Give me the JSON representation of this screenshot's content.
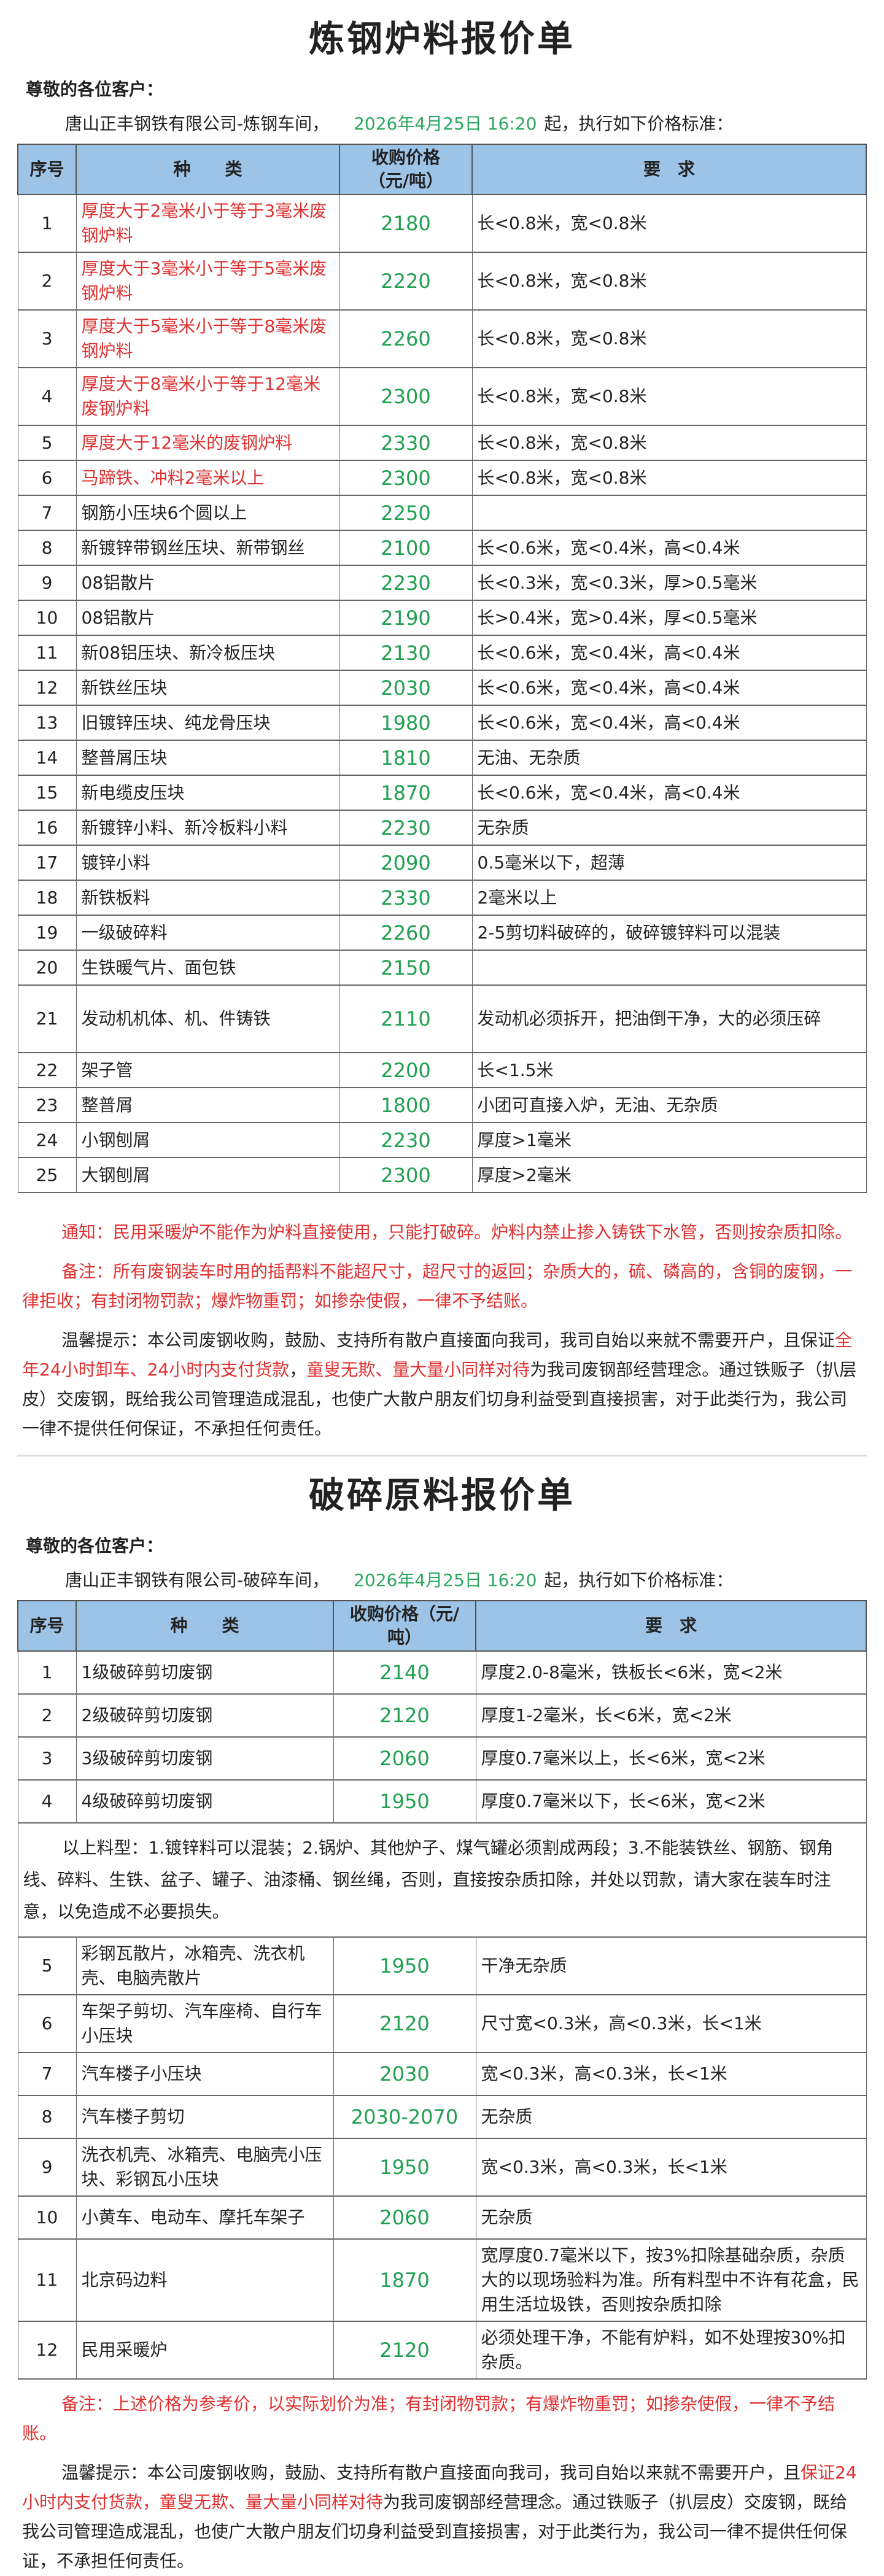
{
  "colors": {
    "header_bg": "#9dc3e6",
    "price": "#22a052",
    "highlight": "#e03030"
  },
  "sheet1": {
    "title": "炼钢炉料报价单",
    "greeting": "尊敬的各位客户：",
    "company": "唐山正丰钢铁有限公司-炼钢车间，",
    "date": "2026年4月25日 16:20",
    "after_date": "起，执行如下价格标准：",
    "headers": {
      "no": "序号",
      "type": "种　　类",
      "price": "收购价格（元/吨）",
      "req": "要　求"
    },
    "rows": [
      {
        "no": "1",
        "type": "厚度大于2毫米小于等于3毫米废钢炉料",
        "price": "2180",
        "req": "长<0.8米，宽<0.8米",
        "red": true
      },
      {
        "no": "2",
        "type": "厚度大于3毫米小于等于5毫米废钢炉料",
        "price": "2220",
        "req": "长<0.8米，宽<0.8米",
        "red": true
      },
      {
        "no": "3",
        "type": "厚度大于5毫米小于等于8毫米废钢炉料",
        "price": "2260",
        "req": "长<0.8米，宽<0.8米",
        "red": true
      },
      {
        "no": "4",
        "type": "厚度大于8毫米小于等于12毫米废钢炉料",
        "price": "2300",
        "req": "长<0.8米，宽<0.8米",
        "red": true
      },
      {
        "no": "5",
        "type": "厚度大于12毫米的废钢炉料",
        "price": "2330",
        "req": "长<0.8米，宽<0.8米",
        "red": true
      },
      {
        "no": "6",
        "type": "马蹄铁、冲料2毫米以上",
        "price": "2300",
        "req": "长<0.8米，宽<0.8米",
        "red": true
      },
      {
        "no": "7",
        "type": "钢筋小压块6个圆以上",
        "price": "2250",
        "req": ""
      },
      {
        "no": "8",
        "type": "新镀锌带钢丝压块、新带钢丝",
        "price": "2100",
        "req": "长<0.6米，宽<0.4米，高<0.4米"
      },
      {
        "no": "9",
        "type": "08铝散片",
        "price": "2230",
        "req": "长<0.3米，宽<0.3米，厚>0.5毫米"
      },
      {
        "no": "10",
        "type": "08铝散片",
        "price": "2190",
        "req": "长>0.4米，宽>0.4米，厚<0.5毫米"
      },
      {
        "no": "11",
        "type": "新08铝压块、新冷板压块",
        "price": "2130",
        "req": "长<0.6米，宽<0.4米，高<0.4米"
      },
      {
        "no": "12",
        "type": "新铁丝压块",
        "price": "2030",
        "req": "长<0.6米，宽<0.4米，高<0.4米"
      },
      {
        "no": "13",
        "type": "旧镀锌压块、纯龙骨压块",
        "price": "1980",
        "req": "长<0.6米，宽<0.4米，高<0.4米"
      },
      {
        "no": "14",
        "type": "整普屑压块",
        "price": "1810",
        "req": "无油、无杂质"
      },
      {
        "no": "15",
        "type": "新电缆皮压块",
        "price": "1870",
        "req": "长<0.6米，宽<0.4米，高<0.4米"
      },
      {
        "no": "16",
        "type": "新镀锌小料、新冷板料小料",
        "price": "2230",
        "req": "无杂质"
      },
      {
        "no": "17",
        "type": "镀锌小料",
        "price": "2090",
        "req": "0.5毫米以下，超薄"
      },
      {
        "no": "18",
        "type": "新铁板料",
        "price": "2330",
        "req": "2毫米以上"
      },
      {
        "no": "19",
        "type": "一级破碎料",
        "price": "2260",
        "req": "2-5剪切料破碎的，破碎镀锌料可以混装"
      },
      {
        "no": "20",
        "type": "生铁暖气片、面包铁",
        "price": "2150",
        "req": ""
      },
      {
        "no": "21",
        "type": "发动机机体、机、件铸铁",
        "price": "2110",
        "req": "发动机必须拆开，把油倒干净，大的必须压碎",
        "tall": true
      },
      {
        "no": "22",
        "type": "架子管",
        "price": "2200",
        "req": "长<1.5米"
      },
      {
        "no": "23",
        "type": "整普屑",
        "price": "1800",
        "req": "小团可直接入炉，无油、无杂质"
      },
      {
        "no": "24",
        "type": "小钢刨屑",
        "price": "2230",
        "req": "厚度>1毫米"
      },
      {
        "no": "25",
        "type": "大钢刨屑",
        "price": "2300",
        "req": "厚度>2毫米"
      }
    ],
    "notice": "通知：民用采暖炉不能作为炉料直接使用，只能打破碎。炉料内禁止掺入铸铁下水管，否则按杂质扣除。",
    "remark": "备注：所有废钢装车时用的插帮料不能超尺寸，超尺寸的返回；杂质大的，硫、磷高的，含铜的废钢，一律拒收；有封闭物罚款；爆炸物重罚；如掺杂使假，一律不予结账。",
    "tip": [
      {
        "text": "温馨提示：本公司废钢收购，鼓励、支持所有散户直接面向我司，我司自始以来就不需要开户，且保证",
        "red": false
      },
      {
        "text": "全年24小时卸车、24小时内支付货款",
        "red": true
      },
      {
        "text": "，",
        "red": false
      },
      {
        "text": "童叟无欺、量大量小同样对待",
        "red": true
      },
      {
        "text": "为我司废钢部经营理念。通过铁贩子（扒层皮）交废钢，既给我公司管理造成混乱，也使广大散户朋友们切身利益受到直接损害，对于此类行为，我公司一律不提供任何保证，不承担任何责任。",
        "red": false
      }
    ]
  },
  "sheet2": {
    "title": "破碎原料报价单",
    "greeting": "尊敬的各位客户：",
    "company": "唐山正丰钢铁有限公司-破碎车间，",
    "date": "2026年4月25日 16:20",
    "after_date": "起，执行如下价格标准：",
    "headers": {
      "no": "序号",
      "type": "种　　类",
      "price": "收购价格（元/吨）",
      "req": "要　求"
    },
    "rows_a": [
      {
        "no": "1",
        "type": "1级破碎剪切废钢",
        "price": "2140",
        "req": "厚度2.0-8毫米，铁板长<6米，宽<2米"
      },
      {
        "no": "2",
        "type": "2级破碎剪切废钢",
        "price": "2120",
        "req": "厚度1-2毫米，长<6米，宽<2米"
      },
      {
        "no": "3",
        "type": "3级破碎剪切废钢",
        "price": "2060",
        "req": "厚度0.7毫米以上，长<6米，宽<2米"
      },
      {
        "no": "4",
        "type": "4级破碎剪切废钢",
        "price": "1950",
        "req": "厚度0.7毫米以下，长<6米，宽<2米"
      }
    ],
    "middle_note": "以上料型：1.镀锌料可以混装；2.锅炉、其他炉子、煤气罐必须割成两段；3.不能装铁丝、钢筋、钢角线、碎料、生铁、盆子、罐子、油漆桶、钢丝绳，否则，直接按杂质扣除，并处以罚款，请大家在装车时注意，以免造成不必要损失。",
    "rows_b": [
      {
        "no": "5",
        "type": "彩钢瓦散片，冰箱壳、洗衣机壳、电脑壳散片",
        "price": "1950",
        "req": "干净无杂质"
      },
      {
        "no": "6",
        "type": "车架子剪切、汽车座椅、自行车小压块",
        "price": "2120",
        "req": "尺寸宽<0.3米，高<0.3米，长<1米"
      },
      {
        "no": "7",
        "type": "汽车楼子小压块",
        "price": "2030",
        "req": "宽<0.3米，高<0.3米，长<1米"
      },
      {
        "no": "8",
        "type": "汽车楼子剪切",
        "price": "2030-2070",
        "req": "无杂质"
      },
      {
        "no": "9",
        "type": "洗衣机壳、冰箱壳、电脑壳小压块、彩钢瓦小压块",
        "price": "1950",
        "req": "宽<0.3米，高<0.3米，长<1米"
      },
      {
        "no": "10",
        "type": "小黄车、电动车、摩托车架子",
        "price": "2060",
        "req": "无杂质"
      },
      {
        "no": "11",
        "type": "北京码边料",
        "price": "1870",
        "req": "宽厚度0.7毫米以下，按3%扣除基础杂质，杂质大的以现场验料为准。所有料型中不许有花盒，民用生活垃圾铁，否则按杂质扣除",
        "tall": true
      },
      {
        "no": "12",
        "type": "民用采暖炉",
        "price": "2120",
        "req": "必须处理干净，不能有炉料，如不处理按30%扣杂质。"
      }
    ],
    "remark": "备注：上述价格为参考价，以实际划价为准；有封闭物罚款；有爆炸物重罚；如掺杂使假，一律不予结账。",
    "tip": [
      {
        "text": "温馨提示：本公司废钢收购，鼓励、支持所有散户直接面向我司，我司自始以来就不需要开户，且",
        "red": false
      },
      {
        "text": "保证24小时内支付货款，童叟无欺、量大量小同样对待",
        "red": true
      },
      {
        "text": "为我司废钢部经营理念。通过铁贩子（扒层皮）交废钢，既给我公司管理造成混乱，也使广大散户朋友们切身利益受到直接损害，对于此类行为，我公司一律不提供任何保证，不承担任何责任。",
        "red": false
      }
    ]
  }
}
